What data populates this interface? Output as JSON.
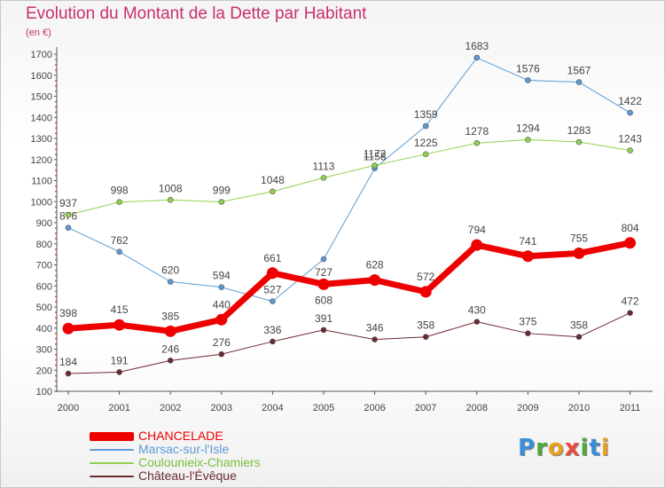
{
  "page": {
    "title": "Evolution du Montant de la Dette par Habitant",
    "subtitle": "(en €)"
  },
  "logo": {
    "text": "Proxiti",
    "letters": [
      {
        "ch": "P",
        "color": "#3a8fd8"
      },
      {
        "ch": "r",
        "color": "#4aaa3a"
      },
      {
        "ch": "o",
        "color": "#e8a020"
      },
      {
        "ch": "x",
        "color": "#e84c3c"
      },
      {
        "ch": "i",
        "color": "#4aaa3a"
      },
      {
        "ch": "t",
        "color": "#3a8fd8"
      },
      {
        "ch": "i",
        "color": "#e8a020"
      }
    ]
  },
  "chart_data": {
    "type": "line",
    "title": "Evolution du Montant de la Dette par Habitant",
    "ylabel": "(en €)",
    "x": [
      "2000",
      "2001",
      "2002",
      "2003",
      "2004",
      "2005",
      "2006",
      "2007",
      "2008",
      "2009",
      "2010",
      "2011"
    ],
    "ylim": [
      100,
      1700
    ],
    "yticks": [
      100,
      200,
      300,
      400,
      500,
      600,
      700,
      800,
      900,
      1000,
      1100,
      1200,
      1300,
      1400,
      1500,
      1600,
      1700
    ],
    "grid": false,
    "legend": "bottom-left",
    "series": [
      {
        "name": "Marsac-sur-l'Isle",
        "color": "#5b9bd5",
        "width": 1,
        "labels_below": [
          5
        ],
        "values": [
          876,
          762,
          620,
          594,
          527,
          727,
          1158,
          1359,
          1683,
          1576,
          1567,
          1422
        ]
      },
      {
        "name": "Coulounieix-Chamiers",
        "color": "#8fd14f",
        "width": 1,
        "labels_below": [],
        "values": [
          937,
          998,
          1008,
          999,
          1048,
          1113,
          1172,
          1225,
          1278,
          1294,
          1283,
          1243
        ]
      },
      {
        "name": "Château-l'Évêque",
        "color": "#6b2a32",
        "width": 1,
        "labels_below": [],
        "values": [
          184,
          191,
          246,
          276,
          336,
          391,
          346,
          358,
          430,
          375,
          358,
          472
        ]
      },
      {
        "name": "CHANCELADE",
        "color": "#ee0000",
        "width": 7,
        "labels_below": [
          5
        ],
        "values": [
          398,
          415,
          385,
          440,
          661,
          608,
          628,
          572,
          794,
          741,
          755,
          804
        ]
      }
    ],
    "legend_order": [
      "CHANCELADE",
      "Marsac-sur-l'Isle",
      "Coulounieix-Chamiers",
      "Château-l'Évêque"
    ]
  }
}
